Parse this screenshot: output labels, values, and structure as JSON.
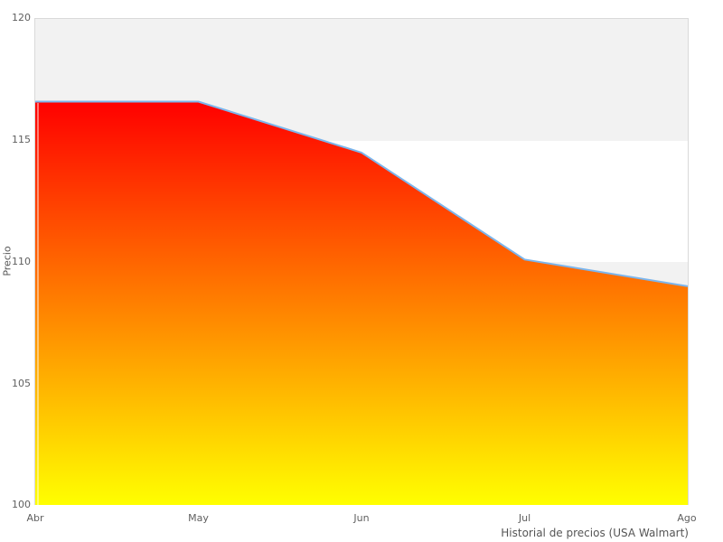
{
  "chart_data": {
    "type": "area",
    "categories": [
      "Abr",
      "May",
      "Jun",
      "Jul",
      "Ago"
    ],
    "series": [
      {
        "name": "Precio",
        "values": [
          116.6,
          116.6,
          114.5,
          110.1,
          109.0
        ]
      }
    ],
    "xlabel": "Historial de precios (USA Walmart)",
    "ylabel": "Precio",
    "ylim": [
      100,
      120
    ],
    "yticks": [
      "120",
      "115",
      "110",
      "105",
      "100"
    ],
    "legend_position": "none",
    "grid": "alternating horizontal plot bands (115-120 and 105-110 shaded)",
    "band_color": "#f2f2f2",
    "plot_border_color": "#d9d9d9",
    "line_color": "#7cb5ec",
    "fill_gradient_top": "#ff0000",
    "fill_gradient_bottom": "#ffff00"
  }
}
